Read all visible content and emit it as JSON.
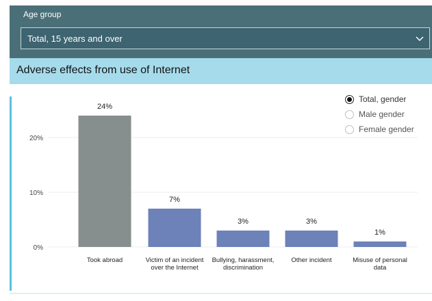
{
  "filter": {
    "label": "Age group",
    "selected_value": "Total, 15 years and over"
  },
  "icons": {
    "dropdown": "chevron-down-icon"
  },
  "colors": {
    "total": "#878e8e",
    "gender": "#6c82b8",
    "panel": "#4a6f78",
    "title_bar": "#a6dbec"
  },
  "legend": {
    "options": [
      {
        "label": "Total, gender",
        "selected": true
      },
      {
        "label": "Male gender",
        "selected": false
      },
      {
        "label": "Female gender",
        "selected": false
      }
    ]
  },
  "chart_data": {
    "type": "bar",
    "title": "Adverse effects from use of Internet",
    "categories": [
      "Took abroad",
      "Victim of an incident over the Internet",
      "Bullying, harassment, discrimination",
      "Other incident",
      "Misuse of personal data"
    ],
    "values": [
      24,
      7,
      3,
      3,
      1
    ],
    "data_labels": [
      "24%",
      "7%",
      "3%",
      "3%",
      "1%"
    ],
    "y_ticks": [
      {
        "value": 0,
        "label": "0%"
      },
      {
        "value": 10,
        "label": "10%"
      },
      {
        "value": 20,
        "label": "20%"
      }
    ],
    "ylim": [
      0,
      25
    ],
    "grid": true,
    "legend_position": "top-right"
  }
}
